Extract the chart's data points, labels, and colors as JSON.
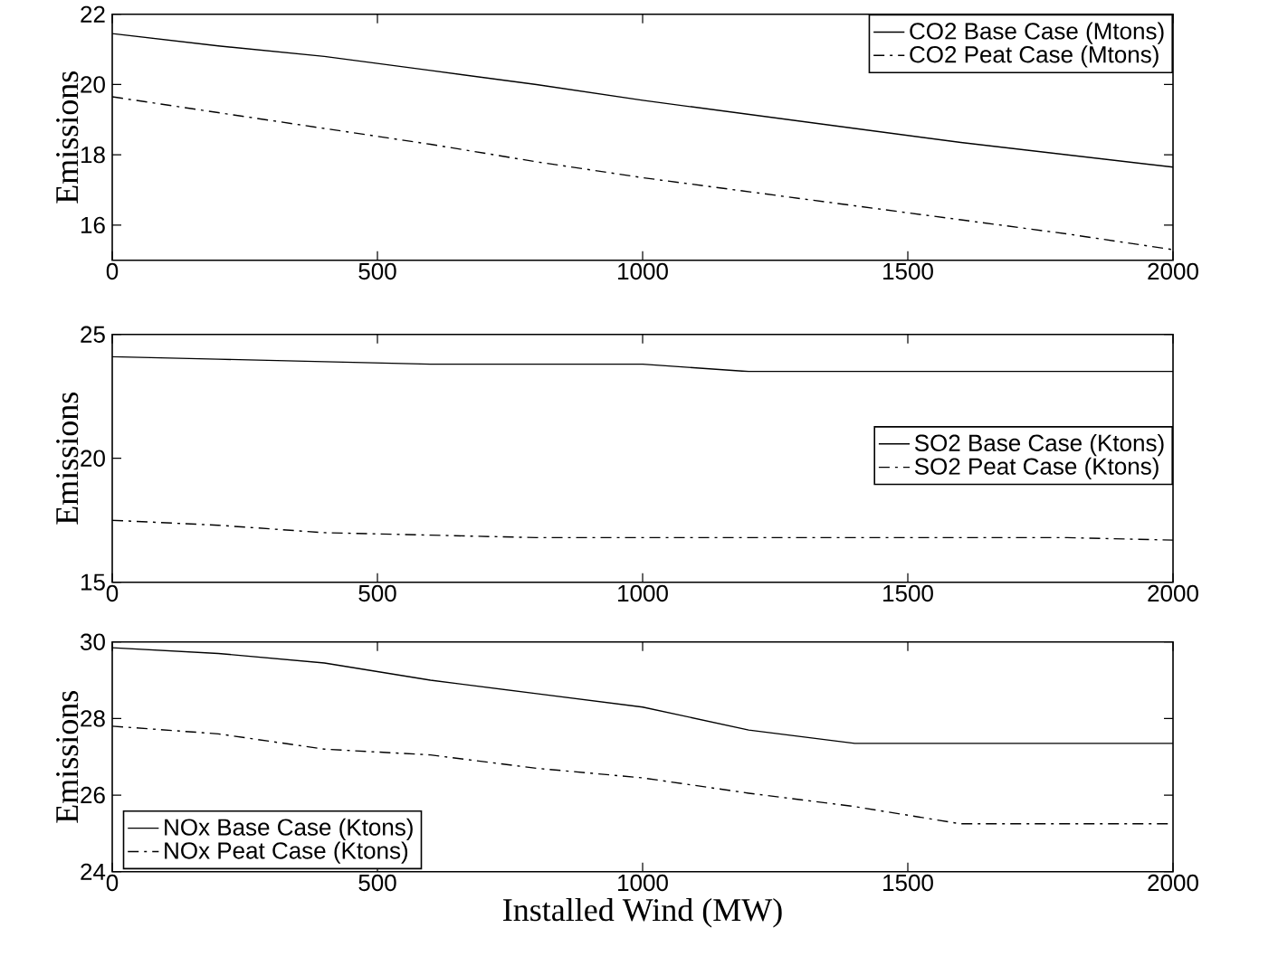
{
  "chart_data": [
    {
      "type": "line",
      "ylabel": "Emissions",
      "x": [
        0,
        200,
        400,
        600,
        800,
        1000,
        1200,
        1400,
        1600,
        1800,
        2000
      ],
      "xlim": [
        0,
        2000
      ],
      "xticks": [
        0,
        500,
        1000,
        1500,
        2000
      ],
      "ylim": [
        15,
        22
      ],
      "yticks": [
        16,
        18,
        20,
        22
      ],
      "legend": "top right",
      "grid": false,
      "marker": "none",
      "series": [
        {
          "name": "CO2 Base Case (Mtons)",
          "color": "#000000",
          "line_style": "solid",
          "values": [
            21.45,
            21.1,
            20.8,
            20.4,
            20.0,
            19.55,
            19.15,
            18.75,
            18.35,
            18.0,
            17.65
          ]
        },
        {
          "name": "CO2 Peat Case (Mtons)",
          "color": "#000000",
          "line_style": "dashdot",
          "values": [
            19.65,
            19.2,
            18.75,
            18.3,
            17.8,
            17.35,
            16.95,
            16.55,
            16.15,
            15.75,
            15.3
          ]
        }
      ]
    },
    {
      "type": "line",
      "ylabel": "Emissions",
      "x": [
        0,
        200,
        400,
        600,
        800,
        1000,
        1200,
        1400,
        1600,
        1800,
        2000
      ],
      "xlim": [
        0,
        2000
      ],
      "xticks": [
        0,
        500,
        1000,
        1500,
        2000
      ],
      "ylim": [
        15,
        25
      ],
      "yticks": [
        15,
        20,
        25
      ],
      "legend": "right",
      "grid": false,
      "marker": "none",
      "series": [
        {
          "name": "SO2 Base Case (Ktons)",
          "color": "#000000",
          "line_style": "solid",
          "values": [
            24.1,
            24.0,
            23.9,
            23.8,
            23.8,
            23.8,
            23.5,
            23.5,
            23.5,
            23.5,
            23.5
          ]
        },
        {
          "name": "SO2 Peat Case (Ktons)",
          "color": "#000000",
          "line_style": "dashdot",
          "values": [
            17.5,
            17.3,
            17.0,
            16.9,
            16.8,
            16.8,
            16.8,
            16.8,
            16.8,
            16.8,
            16.7
          ]
        }
      ]
    },
    {
      "type": "line",
      "ylabel": "Emissions",
      "xlabel": "Installed Wind (MW)",
      "x": [
        0,
        200,
        400,
        600,
        800,
        1000,
        1200,
        1400,
        1600,
        1800,
        2000
      ],
      "xlim": [
        0,
        2000
      ],
      "xticks": [
        0,
        500,
        1000,
        1500,
        2000
      ],
      "ylim": [
        24,
        30
      ],
      "yticks": [
        24,
        26,
        28,
        30
      ],
      "legend": "bottom left",
      "grid": false,
      "marker": "none",
      "series": [
        {
          "name": "NOx Base Case (Ktons)",
          "color": "#000000",
          "line_style": "solid",
          "values": [
            29.85,
            29.7,
            29.45,
            29.0,
            28.65,
            28.3,
            27.7,
            27.35,
            27.35,
            27.35,
            27.35
          ]
        },
        {
          "name": "NOx Peat Case (Ktons)",
          "color": "#000000",
          "line_style": "dashdot",
          "values": [
            27.8,
            27.6,
            27.2,
            27.05,
            26.7,
            26.45,
            26.05,
            25.7,
            25.25,
            25.25,
            25.25
          ]
        }
      ]
    }
  ]
}
